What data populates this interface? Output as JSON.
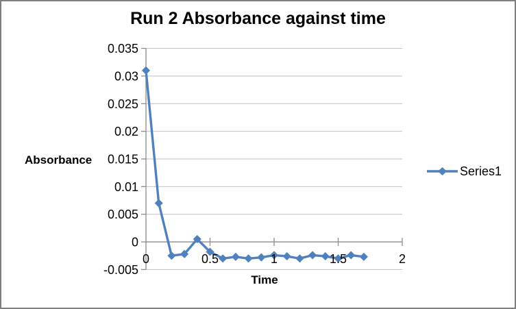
{
  "window": {
    "background": "#FFFFFF",
    "border_color": "#7F7F7F"
  },
  "chart_data": {
    "type": "line",
    "title": "Run 2 Absorbance against time",
    "xlabel": "Time",
    "ylabel": "Absorbance",
    "grid": "horizontal-only",
    "legend_position": "right",
    "xlim": [
      0,
      2
    ],
    "ylim": [
      -0.005,
      0.035
    ],
    "x_ticks": [
      {
        "v": 0,
        "label": "0"
      },
      {
        "v": 0.5,
        "label": "0.5"
      },
      {
        "v": 1,
        "label": "1"
      },
      {
        "v": 1.5,
        "label": "1.5"
      },
      {
        "v": 2,
        "label": "2"
      }
    ],
    "y_ticks": [
      {
        "v": 0.035,
        "label": "0.035"
      },
      {
        "v": 0.03,
        "label": "0.03"
      },
      {
        "v": 0.025,
        "label": "0.025"
      },
      {
        "v": 0.02,
        "label": "0.02"
      },
      {
        "v": 0.015,
        "label": "0.015"
      },
      {
        "v": 0.01,
        "label": "0.01"
      },
      {
        "v": 0.005,
        "label": "0.005"
      },
      {
        "v": 0,
        "label": "0"
      },
      {
        "v": -0.005,
        "label": "-0.005"
      }
    ],
    "series": [
      {
        "name": "Series1",
        "marker": "diamond",
        "color": "#4F81BD",
        "x": [
          0,
          0.1,
          0.2,
          0.3,
          0.4,
          0.5,
          0.6,
          0.7,
          0.8,
          0.9,
          1.0,
          1.1,
          1.2,
          1.3,
          1.4,
          1.5,
          1.6,
          1.7
        ],
        "y": [
          0.031,
          0.007,
          -0.0025,
          -0.0022,
          0.0005,
          -0.0018,
          -0.003,
          -0.0027,
          -0.003,
          -0.0028,
          -0.0024,
          -0.0026,
          -0.003,
          -0.0024,
          -0.0026,
          -0.003,
          -0.0024,
          -0.0027
        ]
      }
    ],
    "colors": {
      "series": "#4F81BD",
      "gridline": "#C0C0C0",
      "axis": "#8C8C8C",
      "text": "#000000",
      "frame_border": "#7F7F7F"
    }
  }
}
